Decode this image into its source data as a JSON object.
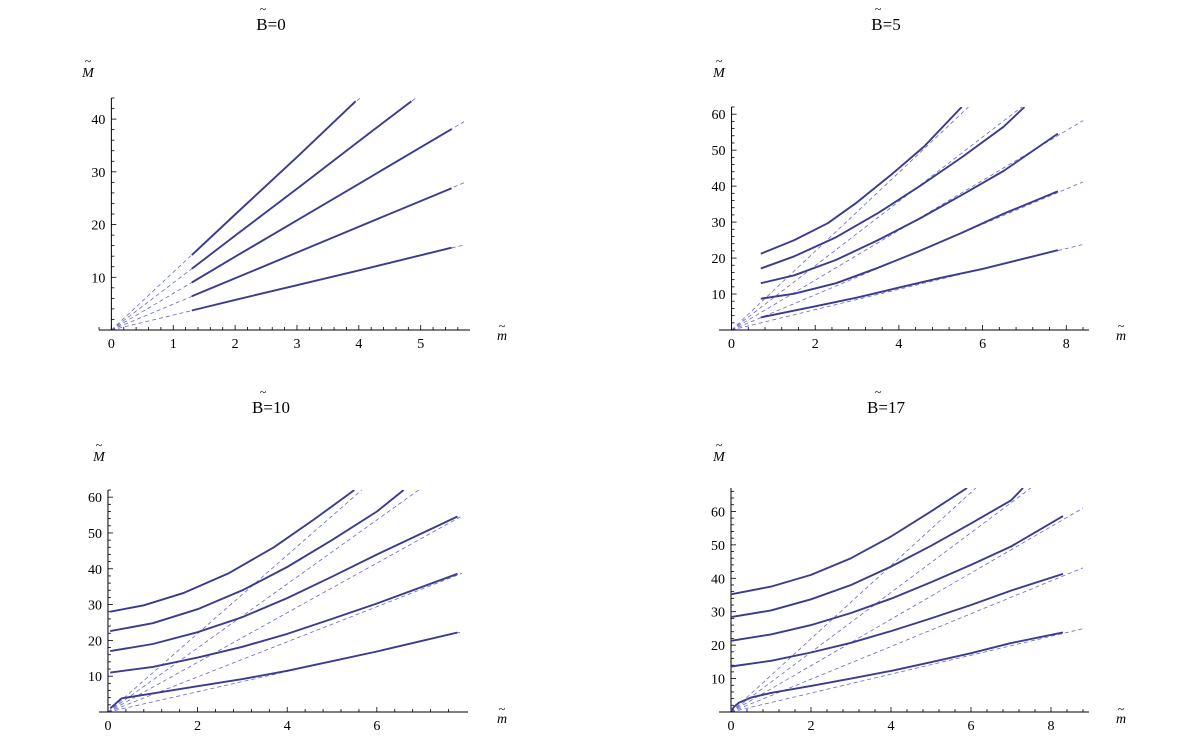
{
  "colors": {
    "curve": "#3b3b8f",
    "asymptote": "#6666cc",
    "axis": "#000000"
  },
  "chart_data": [
    {
      "type": "line",
      "title": "B=0",
      "title_tilde": "~",
      "xlabel": "m",
      "ylabel": "M",
      "label_tilde": "~",
      "xlim": [
        -0.2,
        5.7
      ],
      "ylim": [
        0,
        44
      ],
      "xticks": [
        0,
        1,
        2,
        3,
        4,
        5
      ],
      "yticks": [
        10,
        20,
        30,
        40
      ],
      "asymptote_slopes": [
        2.83,
        4.9,
        6.93,
        8.94,
        10.95
      ],
      "series": [
        {
          "values": [
            [
              1.3,
              3.7
            ],
            [
              2.0,
              5.7
            ],
            [
              3.0,
              8.5
            ],
            [
              4.0,
              11.3
            ],
            [
              5.5,
              15.6
            ]
          ]
        },
        {
          "values": [
            [
              1.3,
              6.4
            ],
            [
              2.0,
              9.8
            ],
            [
              3.0,
              14.7
            ],
            [
              4.0,
              19.6
            ],
            [
              5.5,
              26.9
            ]
          ]
        },
        {
          "values": [
            [
              1.3,
              9.0
            ],
            [
              2.0,
              13.9
            ],
            [
              3.0,
              20.8
            ],
            [
              4.0,
              27.7
            ],
            [
              5.5,
              38.1
            ]
          ]
        },
        {
          "values": [
            [
              1.3,
              11.6
            ],
            [
              2.0,
              17.9
            ],
            [
              3.0,
              26.8
            ],
            [
              4.0,
              35.8
            ],
            [
              4.85,
              43.4
            ]
          ]
        },
        {
          "values": [
            [
              1.3,
              14.2
            ],
            [
              2.0,
              21.9
            ],
            [
              3.0,
              32.8
            ],
            [
              3.95,
              43.4
            ]
          ]
        }
      ]
    },
    {
      "type": "line",
      "title": "B=5",
      "title_tilde": "~",
      "xlabel": "m",
      "ylabel": "M",
      "label_tilde": "~",
      "xlim": [
        -0.3,
        8.4
      ],
      "ylim": [
        0,
        62
      ],
      "xticks": [
        0,
        2,
        4,
        6,
        8
      ],
      "yticks": [
        10,
        20,
        30,
        40,
        50,
        60
      ],
      "asymptote_slopes": [
        2.83,
        4.9,
        6.93,
        8.94,
        10.95
      ],
      "series": [
        {
          "values": [
            [
              0.7,
              3.5
            ],
            [
              2.0,
              6.6
            ],
            [
              3.0,
              9.0
            ],
            [
              4.0,
              11.8
            ],
            [
              5.0,
              14.5
            ],
            [
              6.0,
              17.0
            ],
            [
              7.8,
              22.2
            ]
          ]
        },
        {
          "values": [
            [
              0.7,
              8.7
            ],
            [
              1.5,
              10.1
            ],
            [
              2.5,
              13.0
            ],
            [
              3.5,
              17.3
            ],
            [
              4.5,
              22.0
            ],
            [
              5.5,
              27.0
            ],
            [
              6.5,
              32.3
            ],
            [
              7.8,
              38.6
            ]
          ]
        },
        {
          "values": [
            [
              0.7,
              13.0
            ],
            [
              1.5,
              15.2
            ],
            [
              2.5,
              19.5
            ],
            [
              3.5,
              25.0
            ],
            [
              4.5,
              31.0
            ],
            [
              5.5,
              37.5
            ],
            [
              6.5,
              44.2
            ],
            [
              7.8,
              54.6
            ]
          ]
        },
        {
          "values": [
            [
              0.7,
              17.1
            ],
            [
              1.5,
              20.5
            ],
            [
              2.5,
              25.8
            ],
            [
              3.5,
              32.5
            ],
            [
              4.5,
              40.0
            ],
            [
              5.5,
              48.0
            ],
            [
              6.5,
              56.5
            ],
            [
              7.0,
              62.0
            ]
          ]
        },
        {
          "values": [
            [
              0.7,
              21.2
            ],
            [
              1.5,
              25.0
            ],
            [
              2.3,
              29.7
            ],
            [
              3.0,
              35.5
            ],
            [
              3.8,
              43.0
            ],
            [
              4.6,
              51.0
            ],
            [
              5.5,
              62.0
            ]
          ]
        }
      ]
    },
    {
      "type": "line",
      "title": "B=10",
      "title_tilde": "~",
      "xlabel": "m",
      "ylabel": "M",
      "label_tilde": "~",
      "xlim": [
        -0.2,
        7.9
      ],
      "ylim": [
        0,
        62
      ],
      "xticks": [
        0,
        2,
        4,
        6
      ],
      "yticks": [
        10,
        20,
        30,
        40,
        50,
        60
      ],
      "asymptote_slopes": [
        2.83,
        4.9,
        6.93,
        8.94,
        10.95
      ],
      "series": [
        {
          "values": [
            [
              0.05,
              1.0
            ],
            [
              0.3,
              3.8
            ],
            [
              1.0,
              5.2
            ],
            [
              2.0,
              7.2
            ],
            [
              3.0,
              9.2
            ],
            [
              4.0,
              11.5
            ],
            [
              5.0,
              14.2
            ],
            [
              6.0,
              16.9
            ],
            [
              7.8,
              22.2
            ]
          ]
        },
        {
          "values": [
            [
              0.05,
              11.0
            ],
            [
              1.0,
              12.6
            ],
            [
              2.0,
              15.2
            ],
            [
              3.0,
              18.2
            ],
            [
              4.0,
              21.8
            ],
            [
              5.0,
              26.0
            ],
            [
              6.0,
              30.3
            ],
            [
              7.8,
              38.6
            ]
          ]
        },
        {
          "values": [
            [
              0.05,
              17.0
            ],
            [
              1.0,
              19.0
            ],
            [
              2.0,
              22.3
            ],
            [
              3.0,
              26.5
            ],
            [
              4.0,
              31.8
            ],
            [
              5.0,
              37.8
            ],
            [
              6.0,
              44.0
            ],
            [
              7.8,
              54.6
            ]
          ]
        },
        {
          "values": [
            [
              0.05,
              22.6
            ],
            [
              1.0,
              24.8
            ],
            [
              2.0,
              28.7
            ],
            [
              3.0,
              34.0
            ],
            [
              4.0,
              40.5
            ],
            [
              5.0,
              48.0
            ],
            [
              6.0,
              56.0
            ],
            [
              6.6,
              62.0
            ]
          ]
        },
        {
          "values": [
            [
              0.05,
              28.0
            ],
            [
              0.8,
              29.8
            ],
            [
              1.7,
              33.3
            ],
            [
              2.7,
              38.8
            ],
            [
              3.7,
              46.0
            ],
            [
              4.6,
              53.8
            ],
            [
              5.5,
              62.0
            ]
          ]
        }
      ]
    },
    {
      "type": "line",
      "title": "B=17",
      "title_tilde": "~",
      "xlabel": "m",
      "ylabel": "M",
      "label_tilde": "~",
      "xlim": [
        -0.3,
        8.8
      ],
      "ylim": [
        0,
        67
      ],
      "xticks": [
        0,
        2,
        4,
        6,
        8
      ],
      "yticks": [
        10,
        20,
        30,
        40,
        50,
        60
      ],
      "asymptote_slopes": [
        2.83,
        4.9,
        6.93,
        8.94,
        10.95
      ],
      "series": [
        {
          "values": [
            [
              0.0,
              0.3
            ],
            [
              0.08,
              1.6
            ],
            [
              0.2,
              2.8
            ],
            [
              0.5,
              4.3
            ],
            [
              1.0,
              5.7
            ],
            [
              2.0,
              7.8
            ],
            [
              3.0,
              10.0
            ],
            [
              4.0,
              12.3
            ],
            [
              5.0,
              14.9
            ],
            [
              6.0,
              17.6
            ],
            [
              7.0,
              20.6
            ],
            [
              8.3,
              23.8
            ]
          ]
        },
        {
          "values": [
            [
              0.0,
              13.6
            ],
            [
              1.0,
              15.3
            ],
            [
              2.0,
              17.8
            ],
            [
              3.0,
              20.7
            ],
            [
              4.0,
              24.2
            ],
            [
              5.0,
              28.0
            ],
            [
              6.0,
              32.0
            ],
            [
              7.0,
              36.3
            ],
            [
              8.3,
              41.3
            ]
          ]
        },
        {
          "values": [
            [
              0.0,
              21.3
            ],
            [
              1.0,
              23.2
            ],
            [
              2.0,
              26.0
            ],
            [
              3.0,
              29.6
            ],
            [
              4.0,
              33.9
            ],
            [
              5.0,
              38.8
            ],
            [
              6.0,
              44.0
            ],
            [
              7.0,
              49.5
            ],
            [
              8.3,
              58.6
            ]
          ]
        },
        {
          "values": [
            [
              0.0,
              28.4
            ],
            [
              1.0,
              30.4
            ],
            [
              2.0,
              33.7
            ],
            [
              3.0,
              38.0
            ],
            [
              4.0,
              43.5
            ],
            [
              5.0,
              49.7
            ],
            [
              6.0,
              56.4
            ],
            [
              7.0,
              63.3
            ],
            [
              7.3,
              67.0
            ]
          ]
        },
        {
          "values": [
            [
              0.0,
              35.2
            ],
            [
              1.0,
              37.5
            ],
            [
              2.0,
              41.0
            ],
            [
              3.0,
              46.0
            ],
            [
              4.0,
              52.5
            ],
            [
              5.0,
              60.0
            ],
            [
              5.9,
              67.0
            ]
          ]
        }
      ]
    }
  ]
}
